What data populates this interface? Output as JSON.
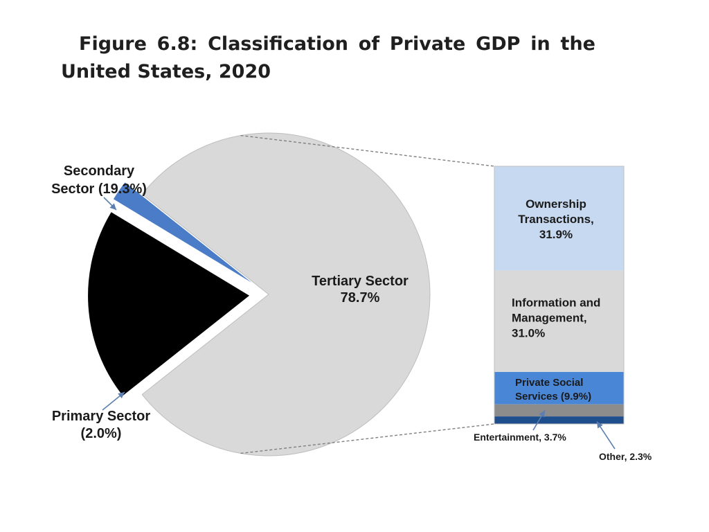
{
  "title": "Figure 6.8: Classification of Private GDP in the United States, 2020",
  "chart_data": [
    {
      "type": "pie",
      "slices": [
        {
          "name": "Tertiary Sector",
          "value": 78.7,
          "label_line1": "Tertiary Sector",
          "label_line2": "78.7%",
          "color": "#d9d9d9"
        },
        {
          "name": "Secondary Sector",
          "value": 19.3,
          "label_line1": "Secondary",
          "label_line2": "Sector (19.3%)",
          "color": "#000000"
        },
        {
          "name": "Primary Sector",
          "value": 2.0,
          "label_line1": "Primary Sector",
          "label_line2": "(2.0%)",
          "color": "#4a7cc7"
        }
      ]
    },
    {
      "type": "bar",
      "stacked": true,
      "breakdown_of": "Tertiary Sector",
      "segments": [
        {
          "name": "Ownership Transactions",
          "value": 31.9,
          "lines": [
            "Ownership",
            "Transactions,",
            "31.9%"
          ],
          "color": "#c6d9f1"
        },
        {
          "name": "Information and Management",
          "value": 31.0,
          "lines": [
            "Information and",
            "Management,",
            "31.0%"
          ],
          "color": "#d9d9d9"
        },
        {
          "name": "Private Social Services",
          "value": 9.9,
          "lines": [
            "Private Social",
            "Services (9.9%)"
          ],
          "color": "#4a86d6"
        },
        {
          "name": "Entertainment",
          "value": 3.7,
          "lines": [
            "Entertainment, 3.7%"
          ],
          "color": "#8c8c8c"
        },
        {
          "name": "Other",
          "value": 2.3,
          "lines": [
            "Other, 2.3%"
          ],
          "color": "#1f4e8c"
        }
      ]
    }
  ]
}
